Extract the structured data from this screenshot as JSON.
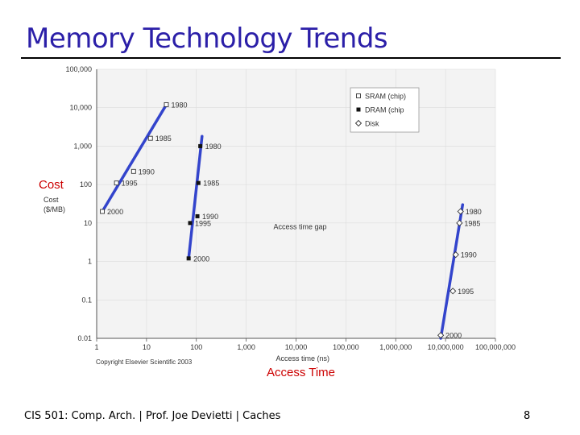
{
  "slide": {
    "title": "Memory Technology Trends",
    "cost_label": "Cost",
    "access_label": "Access Time",
    "footer": "CIS 501: Comp. Arch.  |  Prof. Joe Devietti  |  Caches",
    "page_number": "8"
  },
  "colors": {
    "title": "#2b1fa8",
    "trend_line": "#3344cc",
    "overlay_label": "#cc0000",
    "plot_bg": "#f3f3f3"
  },
  "chart_data": {
    "type": "scatter",
    "x_scale": "log",
    "y_scale": "log",
    "xlim": [
      1,
      100000000
    ],
    "ylim": [
      0.01,
      100000
    ],
    "xlabel": "Access time (ns)",
    "ylabel_lines": [
      "Cost",
      "($/MB)"
    ],
    "x_ticks": [
      {
        "value": 1,
        "label": "1"
      },
      {
        "value": 10,
        "label": "10"
      },
      {
        "value": 100,
        "label": "100"
      },
      {
        "value": 1000,
        "label": "1,000"
      },
      {
        "value": 10000,
        "label": "10,000"
      },
      {
        "value": 100000,
        "label": "100,000"
      },
      {
        "value": 1000000,
        "label": "1,000,000"
      },
      {
        "value": 10000000,
        "label": "10,000,000"
      },
      {
        "value": 100000000,
        "label": "100,000,000"
      }
    ],
    "y_ticks": [
      {
        "value": 100000,
        "label": "100,000"
      },
      {
        "value": 10000,
        "label": "10,000"
      },
      {
        "value": 1000,
        "label": "1,000"
      },
      {
        "value": 100,
        "label": "100"
      },
      {
        "value": 10,
        "label": "10"
      },
      {
        "value": 1,
        "label": "1"
      },
      {
        "value": 0.1,
        "label": "0.1"
      },
      {
        "value": 0.01,
        "label": "0.01"
      }
    ],
    "series": [
      {
        "name": "SRAM (chip)",
        "marker": "open-square",
        "points": [
          {
            "x": 25,
            "y": 12000,
            "label": "1980"
          },
          {
            "x": 12,
            "y": 1600,
            "label": "1985"
          },
          {
            "x": 5.5,
            "y": 220,
            "label": "1990"
          },
          {
            "x": 2.5,
            "y": 110,
            "label": "1995"
          },
          {
            "x": 1.3,
            "y": 20,
            "label": "2000"
          }
        ]
      },
      {
        "name": "DRAM (chip",
        "marker": "filled-square",
        "points": [
          {
            "x": 120,
            "y": 1000,
            "label": "1980"
          },
          {
            "x": 110,
            "y": 110,
            "label": "1985"
          },
          {
            "x": 105,
            "y": 15,
            "label": "1990"
          },
          {
            "x": 75,
            "y": 10,
            "label": "1995"
          },
          {
            "x": 70,
            "y": 1.2,
            "label": "2000"
          }
        ]
      },
      {
        "name": "Disk",
        "marker": "open-diamond",
        "points": [
          {
            "x": 20000000,
            "y": 20,
            "label": "1980"
          },
          {
            "x": 19000000,
            "y": 10,
            "label": "1985"
          },
          {
            "x": 16000000,
            "y": 1.5,
            "label": "1990"
          },
          {
            "x": 14000000,
            "y": 0.17,
            "label": "1995"
          },
          {
            "x": 8000000,
            "y": 0.012,
            "label": "2000"
          }
        ]
      }
    ],
    "trend_lines": [
      {
        "from": {
          "x": 1.3,
          "y": 20
        },
        "to": {
          "x": 25,
          "y": 12000
        }
      },
      {
        "from": {
          "x": 70,
          "y": 1.2
        },
        "to": {
          "x": 130,
          "y": 1800
        }
      },
      {
        "from": {
          "x": 8000000,
          "y": 0.01
        },
        "to": {
          "x": 22000000,
          "y": 30
        }
      }
    ],
    "annotations": [
      {
        "text": "Access time gap",
        "x": 10000,
        "y": 8
      }
    ],
    "copyright": "Copyright Elsevier Scientific 2003"
  }
}
